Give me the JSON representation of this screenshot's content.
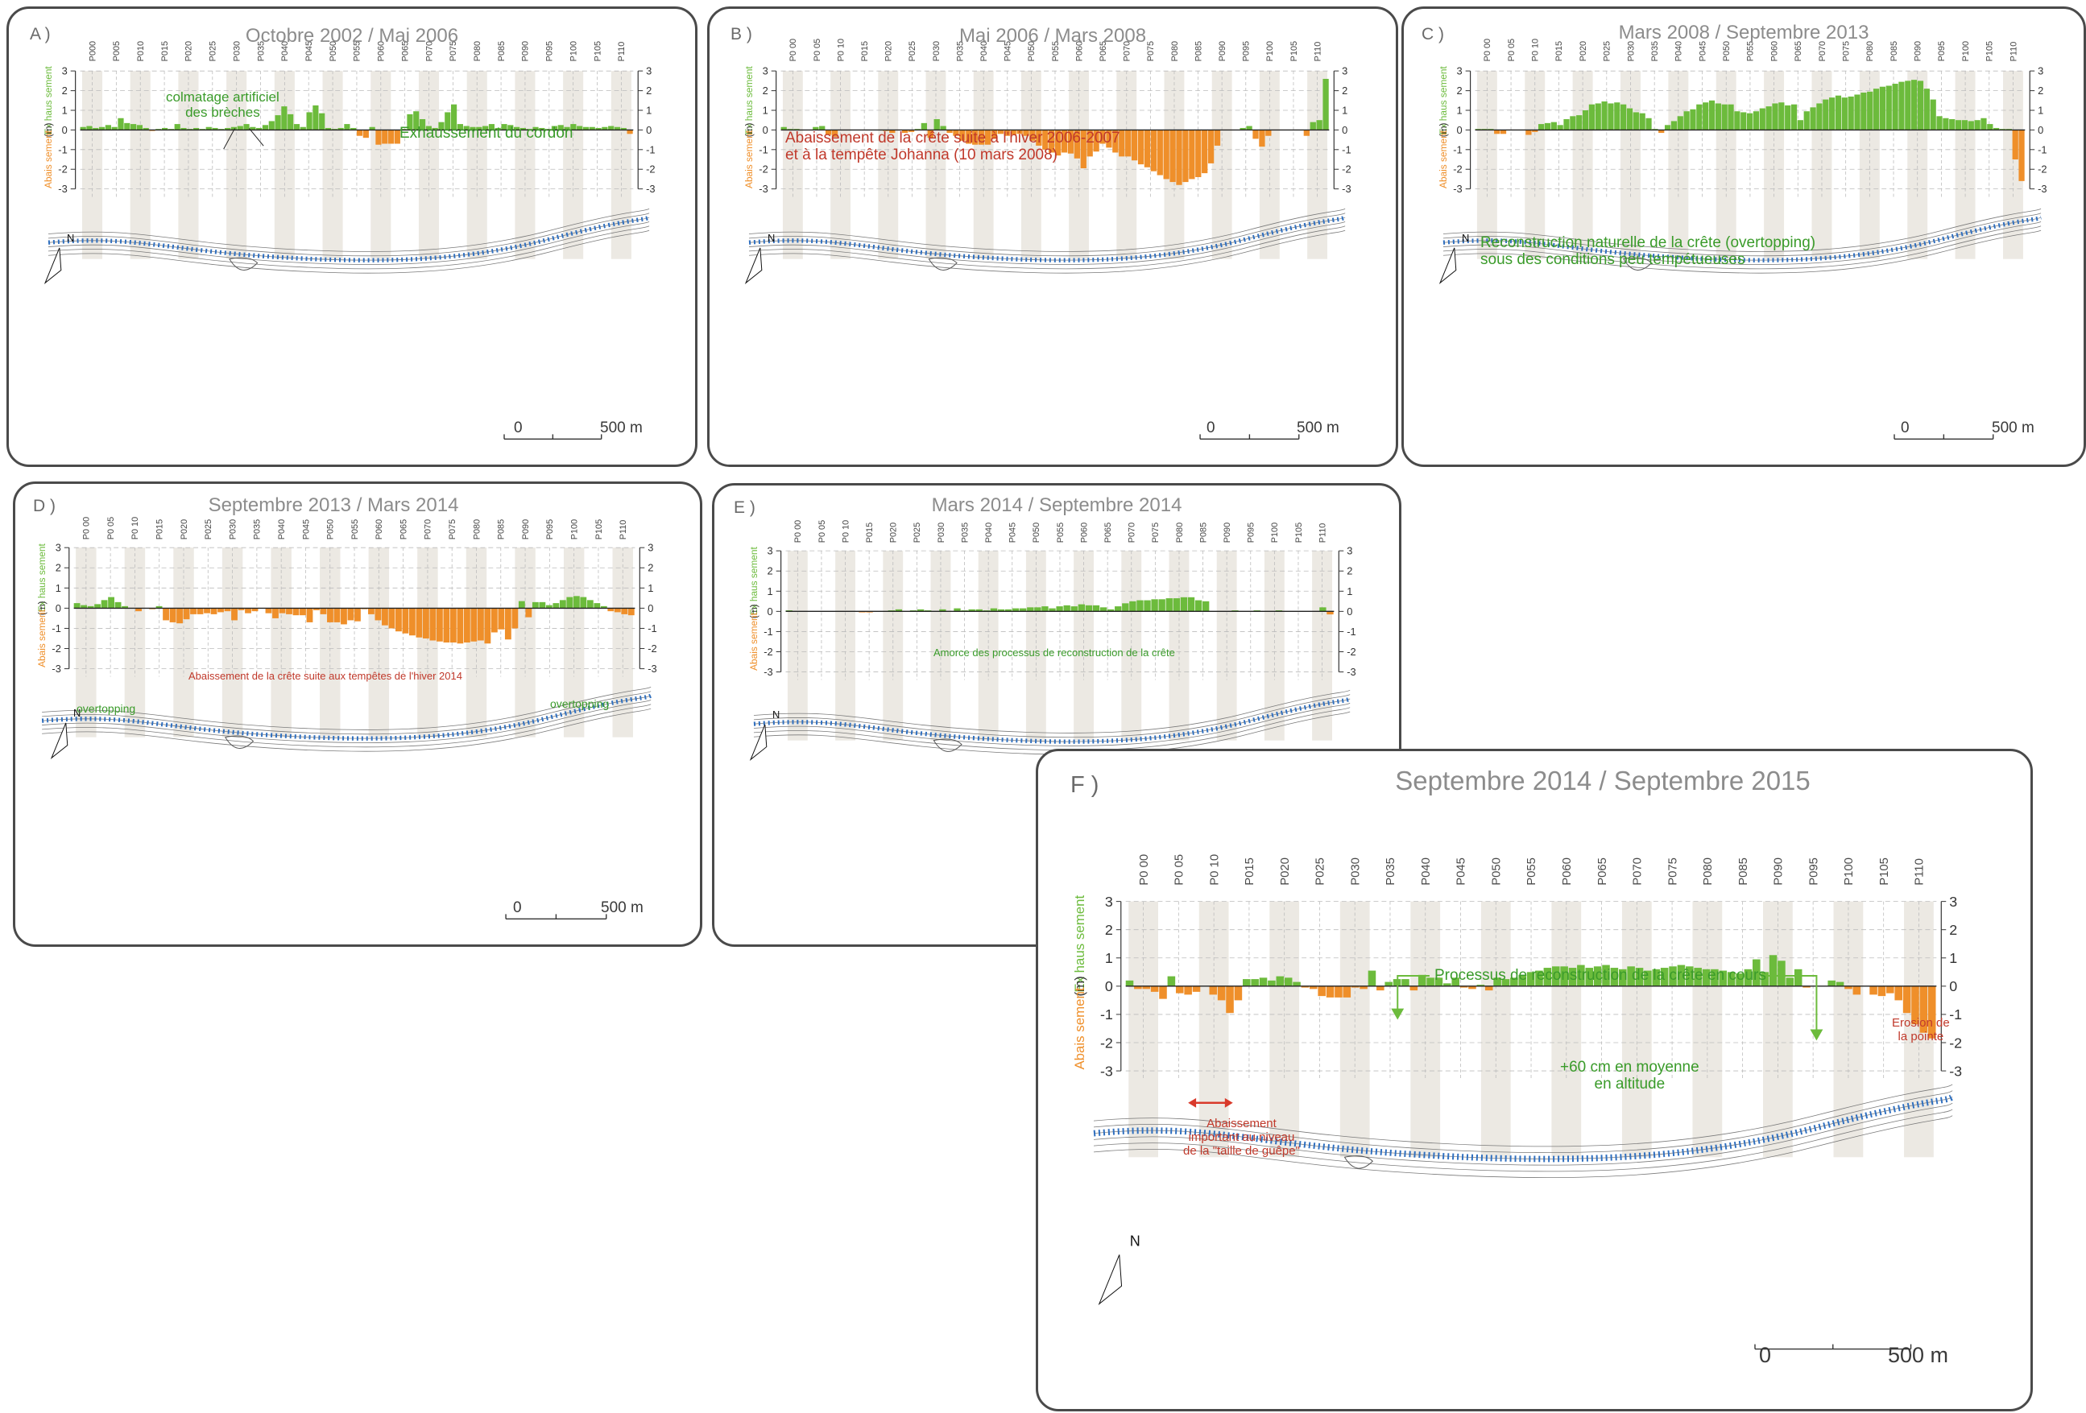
{
  "colors": {
    "gain": "#6cbb3c",
    "loss": "#ef8f2a",
    "band": "#ece9e3",
    "grid": "#bcbcbc",
    "green_text": "#3a9b2a",
    "red_text": "#c0392b",
    "title": "#8c8c8c"
  },
  "axis": {
    "ylim": [
      -3,
      3
    ],
    "ticks": [
      "3",
      "2",
      "1",
      "0",
      "-1",
      "-2",
      "-3"
    ],
    "ylabel_gain": "Ex haus sement",
    "ylabel_unit": "(m)",
    "ylabel_loss": "Abais sement"
  },
  "profiles": [
    "P000",
    "P005",
    "P010",
    "P015",
    "P020",
    "P025",
    "P030",
    "P035",
    "P040",
    "P045",
    "P050",
    "P055",
    "P060",
    "P065",
    "P070",
    "P075",
    "P080",
    "P085",
    "P090",
    "P095",
    "P100",
    "P105",
    "P110"
  ],
  "profile_labels": {
    "A": [
      "P000",
      "P005",
      "P010",
      "P015",
      "P020",
      "P025",
      "P030",
      "P035",
      "P040",
      "P045",
      "P050",
      "P055",
      "P060",
      "P065",
      "P070",
      "P075",
      "P080",
      "P085",
      "P090",
      "P095",
      "P100",
      "P105",
      "P110"
    ],
    "B": [
      "P0 00",
      "P0 05",
      "P0 10",
      "P015",
      "P020",
      "P025",
      "P030",
      "P035",
      "P040",
      "P045",
      "P050",
      "P055",
      "P060",
      "P065",
      "P070",
      "P075",
      "P080",
      "P085",
      "P090",
      "P095",
      "P100",
      "P105",
      "P110"
    ],
    "C": [
      "P0 00",
      "P0 05",
      "P0 10",
      "P015",
      "P020",
      "P025",
      "P030",
      "P035",
      "P040",
      "P045",
      "P050",
      "P055",
      "P060",
      "P065",
      "P070",
      "P075",
      "P080",
      "P085",
      "P090",
      "P095",
      "P100",
      "P105",
      "P110"
    ],
    "D": [
      "P0 00",
      "P0 05",
      "P0 10",
      "P015",
      "P020",
      "P025",
      "P030",
      "P035",
      "P040",
      "P045",
      "P050",
      "P055",
      "P060",
      "P065",
      "P070",
      "P075",
      "P080",
      "P085",
      "P090",
      "P095",
      "P100",
      "P105",
      "P110"
    ],
    "E": [
      "P0 00",
      "P0 05",
      "P0 10",
      "P015",
      "P020",
      "P025",
      "P030",
      "P035",
      "P040",
      "P045",
      "P050",
      "P055",
      "P060",
      "P065",
      "P070",
      "P075",
      "P080",
      "P085",
      "P090",
      "P095",
      "P100",
      "P105",
      "P110"
    ],
    "F": [
      "P0 00",
      "P0 05",
      "P0 10",
      "P015",
      "P020",
      "P025",
      "P030",
      "P035",
      "P040",
      "P045",
      "P050",
      "P055",
      "P060",
      "P065",
      "P070",
      "P075",
      "P080",
      "P085",
      "P090",
      "P095",
      "P100",
      "P105",
      "P110"
    ]
  },
  "scale_bar": {
    "start": "0",
    "end": "500 m"
  },
  "north": "N",
  "panels": [
    {
      "id": "A",
      "letter": "A )",
      "title": "Octobre 2002 / Mai 2006",
      "annotations": [
        {
          "text": "colmatage artificiel\ndes brèches",
          "color": "green"
        },
        {
          "text": "Exhaussement du cordon",
          "color": "green"
        }
      ]
    },
    {
      "id": "B",
      "letter": "B )",
      "title": "Mai 2006 / Mars 2008",
      "annotations": [
        {
          "text": "Abaissement de la crête suite à l'hiver 2006-2007\net à la tempête Johanna (10 mars 2008)",
          "color": "red"
        }
      ]
    },
    {
      "id": "C",
      "letter": "C )",
      "title": "Mars 2008 / Septembre 2013",
      "annotations": [
        {
          "text": "Reconstruction naturelle de la crête (overtopping)\nsous des conditions peu tempétueuses",
          "color": "green"
        }
      ]
    },
    {
      "id": "D",
      "letter": "D )",
      "title": "Septembre 2013 / Mars 2014",
      "annotations": [
        {
          "text": "Abaissement de la crête suite aux tempêtes de l'hiver 2014",
          "color": "red"
        },
        {
          "text": "overtopping",
          "color": "green"
        },
        {
          "text": "overtopping",
          "color": "green"
        }
      ]
    },
    {
      "id": "E",
      "letter": "E )",
      "title": "Mars 2014 / Septembre 2014",
      "annotations": [
        {
          "text": "Amorce des processus de reconstruction de la crête",
          "color": "green"
        }
      ]
    },
    {
      "id": "F",
      "letter": "F )",
      "title": "Septembre 2014 / Septembre 2015",
      "annotations": [
        {
          "text": "Processus de reconstruction de la crête en cours",
          "color": "green"
        },
        {
          "text": "+60 cm en moyenne\nen altitude",
          "color": "green"
        },
        {
          "text": "Abaissement\nimportant au niveau\nde la \"taille de guêpe\"",
          "color": "red"
        },
        {
          "text": "Erosion de\nla pointe",
          "color": "red"
        }
      ]
    }
  ],
  "chart_data": [
    {
      "type": "bar",
      "panel": "A",
      "title": "Octobre 2002 / Mai 2006",
      "ylabel": "(m)",
      "ylim": [
        -3,
        3
      ],
      "x_start": "P000",
      "x_end": "P110",
      "values": [
        0.15,
        0.2,
        0.1,
        0.15,
        0.25,
        0.15,
        0.6,
        0.35,
        0.3,
        0.25,
        0.1,
        -0.05,
        0.05,
        0.1,
        0.05,
        0.3,
        0.1,
        0.05,
        0.1,
        0.05,
        0.15,
        0.1,
        0.05,
        0.1,
        0.15,
        0.2,
        0.3,
        0.15,
        0.1,
        0.25,
        0.45,
        0.75,
        1.2,
        0.8,
        0.3,
        0.15,
        0.9,
        1.25,
        0.85,
        0.1,
        0.05,
        0.1,
        0.3,
        0.1,
        -0.3,
        -0.4,
        0.15,
        -0.75,
        -0.7,
        -0.7,
        -0.7,
        0.05,
        0.8,
        0.95,
        0.55,
        0.2,
        0.1,
        0.4,
        0.9,
        1.3,
        0.3,
        0.2,
        0.15,
        0.15,
        0.2,
        0.3,
        0.1,
        0.3,
        0.25,
        0.15,
        0.1,
        0.05,
        0.15,
        0.1,
        0.05,
        0.2,
        0.25,
        0.15,
        0.3,
        0.2,
        0.15,
        0.15,
        0.1,
        0.15,
        0.2,
        0.15,
        0.1,
        -0.2
      ]
    },
    {
      "type": "bar",
      "panel": "B",
      "title": "Mai 2006 / Mars 2008",
      "ylabel": "(m)",
      "ylim": [
        -3,
        3
      ],
      "x_start": "P000",
      "x_end": "P110",
      "values": [
        0.15,
        0.05,
        0.05,
        0.0,
        0.0,
        0.15,
        0.2,
        -0.25,
        -0.35,
        0.0,
        0.0,
        0.0,
        0.0,
        0.0,
        0.0,
        0.0,
        -0.05,
        -0.15,
        0.0,
        -0.15,
        -0.1,
        0.05,
        0.35,
        -0.4,
        0.55,
        0.2,
        -0.15,
        -0.3,
        -0.55,
        -0.7,
        -0.75,
        -0.75,
        -0.75,
        -0.45,
        -0.2,
        -0.3,
        -0.25,
        -0.2,
        -0.3,
        -0.55,
        -0.8,
        -1.0,
        -1.15,
        -1.3,
        -1.15,
        -1.2,
        -1.45,
        -1.95,
        -1.35,
        -1.1,
        -0.7,
        -0.9,
        -1.15,
        -1.35,
        -1.35,
        -1.55,
        -1.75,
        -1.9,
        -2.1,
        -2.3,
        -2.5,
        -2.65,
        -2.8,
        -2.65,
        -2.5,
        -2.4,
        -2.2,
        -1.7,
        -0.8,
        0.0,
        0.0,
        0.0,
        0.1,
        0.2,
        -0.45,
        -0.85,
        -0.3,
        0.0,
        0.0,
        0.0,
        0.0,
        0.0,
        -0.3,
        0.4,
        0.5,
        2.6
      ]
    },
    {
      "type": "bar",
      "panel": "C",
      "title": "Mars 2008 / Septembre 2013",
      "ylabel": "(m)",
      "ylim": [
        -3,
        3
      ],
      "x_start": "P000",
      "x_end": "P110",
      "values": [
        0.05,
        0.05,
        0.05,
        -0.2,
        -0.2,
        0.0,
        0.0,
        0.0,
        -0.25,
        -0.1,
        0.3,
        0.35,
        0.4,
        0.25,
        0.55,
        0.7,
        0.75,
        1.0,
        1.3,
        1.35,
        1.45,
        1.35,
        1.4,
        1.3,
        1.1,
        0.9,
        0.85,
        0.6,
        0.05,
        -0.15,
        0.25,
        0.45,
        0.7,
        0.95,
        1.05,
        1.3,
        1.4,
        1.5,
        1.35,
        1.3,
        1.3,
        0.95,
        0.9,
        0.85,
        0.95,
        1.1,
        1.2,
        1.35,
        1.4,
        1.25,
        1.3,
        0.5,
        0.95,
        1.15,
        1.35,
        1.55,
        1.65,
        1.75,
        1.65,
        1.7,
        1.8,
        1.9,
        1.95,
        2.1,
        2.2,
        2.25,
        2.35,
        2.45,
        2.5,
        2.55,
        2.5,
        2.1,
        1.55,
        0.7,
        0.6,
        0.55,
        0.5,
        0.5,
        0.45,
        0.5,
        0.6,
        0.3,
        0.1,
        0.05,
        0.05,
        -1.5,
        -2.6
      ]
    },
    {
      "type": "bar",
      "panel": "D",
      "title": "Septembre 2013 / Mars 2014",
      "ylabel": "(m)",
      "ylim": [
        -3,
        3
      ],
      "x_start": "P000",
      "x_end": "P110",
      "values": [
        0.25,
        0.15,
        0.1,
        0.2,
        0.4,
        0.55,
        0.3,
        0.1,
        0.0,
        -0.15,
        0.0,
        -0.05,
        0.1,
        -0.6,
        -0.7,
        -0.75,
        -0.55,
        -0.3,
        -0.3,
        -0.25,
        -0.3,
        -0.2,
        -0.15,
        -0.6,
        -0.1,
        -0.25,
        -0.15,
        0.0,
        -0.25,
        -0.5,
        -0.25,
        -0.3,
        -0.35,
        -0.35,
        -0.7,
        -0.1,
        -0.3,
        -0.7,
        -0.7,
        -0.8,
        -0.6,
        -0.65,
        -0.05,
        -0.3,
        -0.6,
        -0.85,
        -1.0,
        -1.15,
        -1.25,
        -1.35,
        -1.45,
        -1.5,
        -1.6,
        -1.65,
        -1.7,
        -1.7,
        -1.75,
        -1.7,
        -1.65,
        -1.6,
        -1.75,
        -1.2,
        -1.05,
        -1.55,
        -1.0,
        0.35,
        -0.45,
        0.3,
        0.3,
        0.15,
        0.25,
        0.4,
        0.55,
        0.6,
        0.55,
        0.4,
        0.25,
        0.1,
        -0.15,
        -0.2,
        -0.3,
        -0.35
      ]
    },
    {
      "type": "bar",
      "panel": "E",
      "title": "Mars 2014 / Septembre 2014",
      "ylabel": "(m)",
      "ylim": [
        -3,
        3
      ],
      "x_start": "P000",
      "x_end": "P110",
      "values": [
        0.05,
        0.0,
        0.0,
        0.0,
        0.0,
        0.0,
        0.0,
        0.0,
        0.0,
        0.0,
        -0.05,
        -0.05,
        0.0,
        0.0,
        0.05,
        0.1,
        0.0,
        0.05,
        0.1,
        0.05,
        0.0,
        0.1,
        0.0,
        0.15,
        0.05,
        0.1,
        0.1,
        0.05,
        0.15,
        0.1,
        0.1,
        0.15,
        0.15,
        0.2,
        0.2,
        0.25,
        0.15,
        0.25,
        0.3,
        0.25,
        0.35,
        0.3,
        0.3,
        0.2,
        0.1,
        0.25,
        0.4,
        0.5,
        0.55,
        0.55,
        0.6,
        0.6,
        0.65,
        0.65,
        0.7,
        0.7,
        0.55,
        0.5,
        0.0,
        0.0,
        0.0,
        0.05,
        0.0,
        0.0,
        0.05,
        0.0,
        0.0,
        0.05,
        0.0,
        0.0,
        0.0,
        0.0,
        0.0,
        0.2,
        -0.15
      ]
    },
    {
      "type": "bar",
      "panel": "F",
      "title": "Septembre 2014 / Septembre 2015",
      "ylabel": "(m)",
      "ylim": [
        -3,
        3
      ],
      "x_start": "P000",
      "x_end": "P110",
      "values": [
        0.2,
        -0.1,
        -0.1,
        -0.2,
        -0.45,
        0.35,
        -0.25,
        -0.3,
        -0.2,
        0.0,
        -0.3,
        -0.5,
        -0.95,
        -0.5,
        0.25,
        0.25,
        0.3,
        0.2,
        0.35,
        0.3,
        0.15,
        -0.05,
        -0.1,
        -0.35,
        -0.4,
        -0.4,
        -0.4,
        -0.05,
        -0.1,
        0.55,
        -0.15,
        0.15,
        0.25,
        0.25,
        -0.15,
        0.4,
        0.3,
        0.3,
        0.1,
        0.3,
        -0.05,
        -0.1,
        0.05,
        -0.15,
        0.3,
        0.25,
        0.3,
        0.4,
        0.5,
        0.55,
        0.65,
        0.7,
        0.7,
        0.65,
        0.75,
        0.65,
        0.7,
        0.75,
        0.65,
        0.6,
        0.7,
        0.65,
        0.55,
        0.6,
        0.65,
        0.7,
        0.75,
        0.7,
        0.65,
        0.6,
        0.6,
        0.55,
        0.5,
        0.45,
        0.6,
        0.95,
        0.5,
        1.1,
        0.9,
        0.3,
        0.6,
        -0.05,
        0.0,
        0.0,
        0.2,
        0.15,
        -0.1,
        -0.3,
        0.0,
        -0.3,
        -0.35,
        -0.25,
        -0.5,
        -0.95,
        -1.35,
        -1.65,
        -1.85
      ]
    }
  ]
}
